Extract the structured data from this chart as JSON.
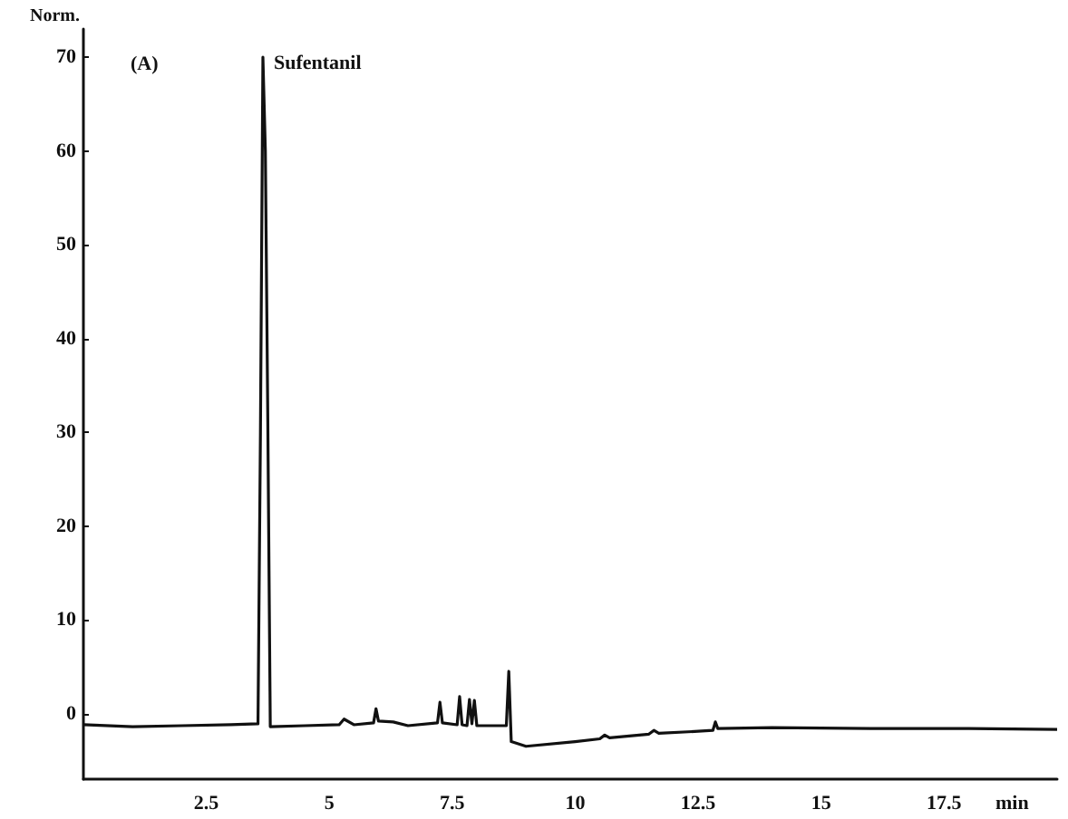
{
  "chart_data": {
    "type": "line",
    "ylabel": "Norm.",
    "xlabel": "min",
    "annotations": [
      "(A)",
      {
        "text": "Sufentanil",
        "x": 3.65,
        "y": 70
      }
    ],
    "xlim": [
      0,
      19.8
    ],
    "ylim": [
      -7,
      73
    ],
    "xticks": [
      2.5,
      5,
      7.5,
      10,
      12.5,
      15,
      17.5
    ],
    "yticks": [
      0,
      10,
      20,
      30,
      40,
      50,
      60,
      70
    ],
    "grid": false,
    "marker": "none",
    "line_style": "solid",
    "series": [
      {
        "color": "#111111",
        "x": [
          0,
          1,
          2,
          3,
          3.55,
          3.6,
          3.65,
          3.7,
          3.75,
          3.8,
          4.5,
          5.2,
          5.3,
          5.5,
          5.9,
          5.95,
          6.0,
          6.3,
          6.6,
          7.2,
          7.25,
          7.3,
          7.6,
          7.65,
          7.7,
          7.8,
          7.85,
          7.9,
          7.95,
          8.0,
          8.6,
          8.65,
          8.7,
          9.0,
          10,
          10.5,
          10.6,
          10.7,
          11.5,
          11.6,
          11.7,
          12.5,
          12.8,
          12.85,
          12.9,
          14,
          16,
          18,
          19.8
        ],
        "values": [
          -1.2,
          -1.4,
          -1.3,
          -1.2,
          -1.1,
          30,
          70,
          60,
          31,
          -1.4,
          -1.3,
          -1.2,
          -0.6,
          -1.2,
          -1.0,
          0.5,
          -0.8,
          -0.9,
          -1.3,
          -1.0,
          1.2,
          -1.0,
          -1.2,
          1.8,
          -1.2,
          -1.3,
          1.5,
          -1.1,
          1.4,
          -1.3,
          -1.3,
          4.5,
          -3.0,
          -3.5,
          -3.0,
          -2.7,
          -2.3,
          -2.6,
          -2.2,
          -1.8,
          -2.1,
          -1.9,
          -1.8,
          -0.9,
          -1.6,
          -1.5,
          -1.6,
          -1.6,
          -1.7
        ]
      }
    ]
  }
}
